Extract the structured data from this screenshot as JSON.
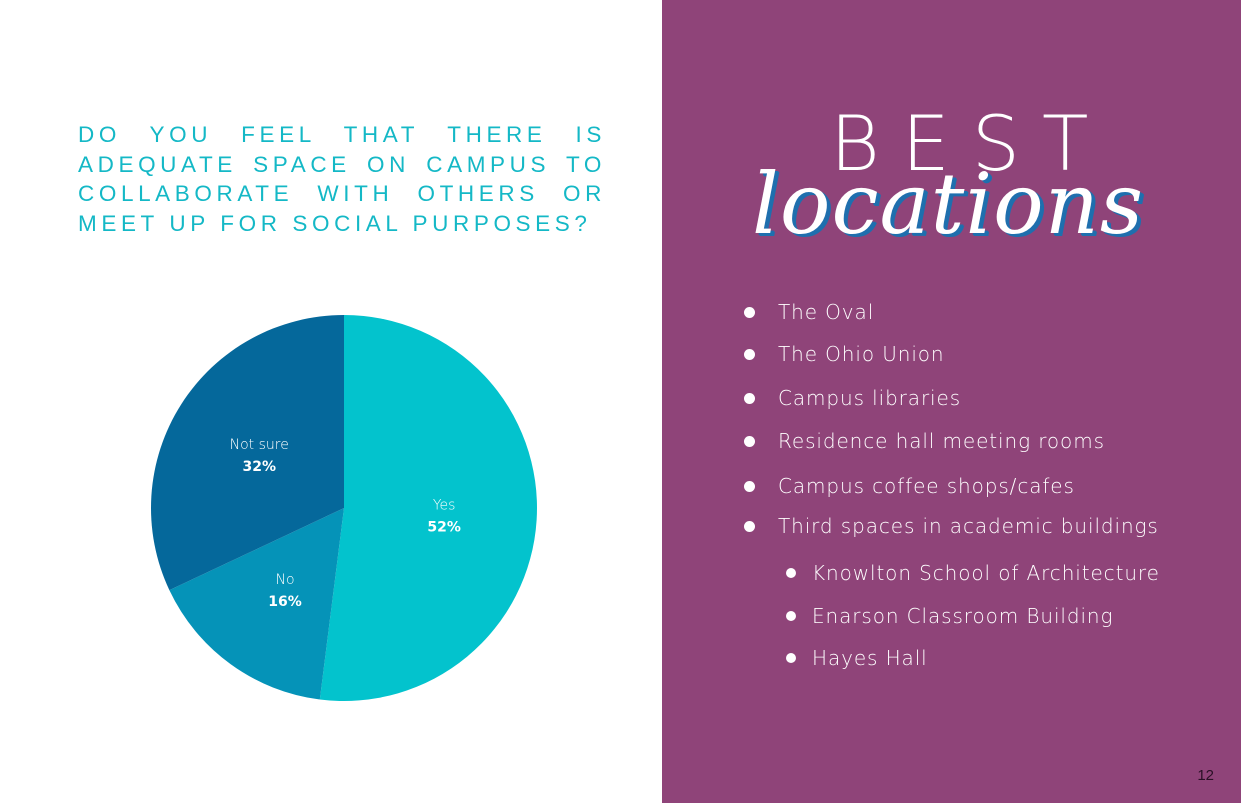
{
  "question": "DO YOU FEEL THAT THERE IS ADEQUATE SPACE ON CAMPUS TO COLLABORATE WITH OTHERS OR MEET UP FOR SOCIAL PURPOSES?",
  "chart_data": {
    "type": "pie",
    "title": "",
    "slices": [
      {
        "label": "Yes",
        "value": 52,
        "display": "52%",
        "color": "#03c3cd"
      },
      {
        "label": "No",
        "value": 16,
        "display": "16%",
        "color": "#0593b8"
      },
      {
        "label": "Not sure",
        "value": 32,
        "display": "32%",
        "color": "#05689b"
      }
    ],
    "start": "12 o'clock",
    "direction": "clockwise",
    "legend": "none (labels on slices)"
  },
  "sidebar": {
    "title_word1": "BEST",
    "title_word2": "locations",
    "background_color": "#8f4479",
    "items": [
      {
        "label": "The Oval",
        "level": 1
      },
      {
        "label": "The Ohio Union",
        "level": 1
      },
      {
        "label": "Campus libraries",
        "level": 1
      },
      {
        "label": "Residence hall meeting rooms",
        "level": 1
      },
      {
        "label": "Campus coffee shops/cafes",
        "level": 1
      },
      {
        "label": "Third spaces in academic buildings",
        "level": 1
      },
      {
        "label": "Knowlton School of Architecture",
        "level": 2
      },
      {
        "label": "Enarson Classroom Building",
        "level": 2
      },
      {
        "label": "Hayes Hall",
        "level": 2
      }
    ]
  },
  "page_number": "12"
}
